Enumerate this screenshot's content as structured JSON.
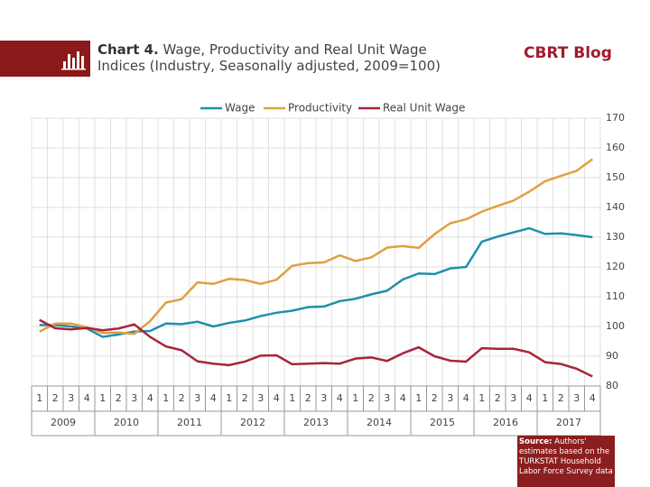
{
  "chart_data": {
    "type": "line",
    "title_label": "Chart 4.",
    "title": "Wage, Productivity and Real Unit Wage Indices (Industry, Seasonally adjusted, 2009=100)",
    "categories": [
      "1",
      "2",
      "3",
      "4",
      "1",
      "2",
      "3",
      "4",
      "1",
      "2",
      "3",
      "4",
      "1",
      "2",
      "3",
      "4",
      "1",
      "2",
      "3",
      "4",
      "1",
      "2",
      "3",
      "4",
      "1",
      "2",
      "3",
      "4",
      "1",
      "2",
      "3",
      "4",
      "1",
      "2",
      "3",
      "4"
    ],
    "year_groups": [
      "2009",
      "2010",
      "2011",
      "2012",
      "2013",
      "2014",
      "2015",
      "2016",
      "2017"
    ],
    "series": [
      {
        "name": "Wage",
        "color": "#1f8fad",
        "values": [
          100.5,
          100.5,
          100,
          99.3,
          96.5,
          97.3,
          98.3,
          98.5,
          101,
          100.8,
          101.6,
          100,
          101.2,
          102,
          103.5,
          104.6,
          105.3,
          106.5,
          106.7,
          108.5,
          109.3,
          110.8,
          112,
          115.8,
          117.8,
          117.6,
          119.5,
          120,
          128.5,
          130.2,
          131.6,
          133,
          131.1,
          131.3,
          130.7,
          130
        ]
      },
      {
        "name": "Productivity",
        "color": "#e0a040",
        "values": [
          98.3,
          101,
          101,
          99.7,
          97.8,
          98,
          97.5,
          101.8,
          108,
          109.2,
          114.8,
          114.3,
          116,
          115.6,
          114.3,
          115.7,
          120.4,
          121.3,
          121.5,
          123.9,
          122,
          123.2,
          126.5,
          127,
          126.4,
          131,
          134.7,
          136,
          138.6,
          140.5,
          142.3,
          145.3,
          148.8,
          150.6,
          152.3,
          156.2
        ]
      },
      {
        "name": "Real Unit Wage",
        "color": "#a8243a",
        "values": [
          102.2,
          99.4,
          99,
          99.5,
          98.7,
          99.3,
          100.7,
          96.5,
          93.3,
          92,
          88.3,
          87.5,
          87,
          88.2,
          90.2,
          90.3,
          87.3,
          87.5,
          87.7,
          87.5,
          89.2,
          89.6,
          88.4,
          91,
          93,
          90,
          88.5,
          88.2,
          92.7,
          92.5,
          92.5,
          91.3,
          88,
          87.4,
          85.8,
          83.2
        ]
      }
    ],
    "ylim": [
      80,
      170
    ],
    "yticks": [
      80,
      90,
      100,
      110,
      120,
      130,
      140,
      150,
      160,
      170
    ],
    "grid": true
  },
  "brand": "CBRT Blog",
  "source": {
    "label": "Source:",
    "text": "Authors' estimates based on the TURKSTAT Household Labor Force Survey data"
  }
}
